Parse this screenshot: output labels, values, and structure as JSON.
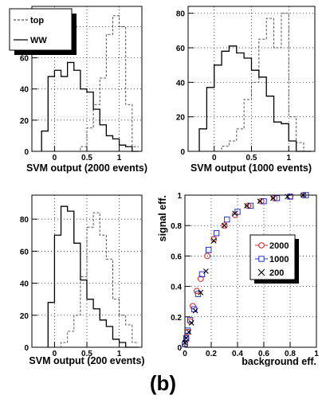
{
  "caption": "(b)",
  "chart_data": [
    {
      "type": "histogram",
      "xlabel": "SVM output (2000 events)",
      "ylabel": "",
      "xlim": [
        -0.35,
        1.35
      ],
      "ylim": [
        0,
        93
      ],
      "x_ticks": [
        0,
        0.5,
        1
      ],
      "x_tick_labels": [
        "0",
        "0.5",
        "1"
      ],
      "y_ticks": [
        0,
        20,
        40,
        60,
        80
      ],
      "y_tick_labels": [
        "0",
        "20",
        "40",
        "60",
        "80"
      ],
      "grid": true,
      "legend_position": "top-left",
      "bin_edges": [
        -0.2,
        -0.1,
        0.0,
        0.1,
        0.2,
        0.3,
        0.4,
        0.5,
        0.6,
        0.7,
        0.8,
        0.9,
        1.0,
        1.1,
        1.2,
        1.3
      ],
      "series": [
        {
          "name": "top",
          "style": "dashed",
          "color": "#555555",
          "values": [
            0,
            0,
            0,
            0,
            0,
            0,
            3,
            15,
            30,
            47,
            75,
            87,
            80,
            30,
            3
          ]
        },
        {
          "name": "WW",
          "style": "solid",
          "color": "#000000",
          "values": [
            13,
            48,
            52,
            48,
            57,
            52,
            40,
            38,
            27,
            17,
            10,
            8,
            4,
            3,
            0
          ]
        }
      ]
    },
    {
      "type": "histogram",
      "xlabel": "SVM output (1000 events)",
      "ylabel": "",
      "xlim": [
        -0.35,
        1.35
      ],
      "ylim": [
        0,
        84
      ],
      "x_ticks": [
        0,
        0.5,
        1
      ],
      "x_tick_labels": [
        "0",
        "0.5",
        "1"
      ],
      "y_ticks": [
        0,
        20,
        40,
        60,
        80
      ],
      "y_tick_labels": [
        "0",
        "20",
        "40",
        "60",
        "80"
      ],
      "grid": true,
      "bin_edges": [
        -0.2,
        -0.1,
        0.0,
        0.1,
        0.2,
        0.3,
        0.4,
        0.5,
        0.6,
        0.7,
        0.8,
        0.9,
        1.0,
        1.1,
        1.2,
        1.3
      ],
      "series": [
        {
          "name": "top",
          "style": "dashed",
          "color": "#555555",
          "values": [
            0,
            0,
            0,
            3,
            6,
            13,
            30,
            40,
            65,
            77,
            60,
            80,
            20,
            5,
            0
          ]
        },
        {
          "name": "WW",
          "style": "solid",
          "color": "#000000",
          "values": [
            13,
            37,
            50,
            58,
            61,
            57,
            54,
            47,
            43,
            32,
            17,
            16,
            6,
            0,
            0
          ]
        }
      ]
    },
    {
      "type": "histogram",
      "xlabel": "SVM output (200 events)",
      "ylabel": "",
      "xlim": [
        -0.35,
        1.35
      ],
      "ylim": [
        0,
        95
      ],
      "x_ticks": [
        0,
        0.5,
        1
      ],
      "x_tick_labels": [
        "0",
        "0.5",
        "1"
      ],
      "y_ticks": [
        0,
        20,
        40,
        60,
        80
      ],
      "y_tick_labels": [
        "0",
        "20",
        "40",
        "60",
        "80"
      ],
      "grid": true,
      "bin_edges": [
        -0.1,
        0.0,
        0.1,
        0.2,
        0.3,
        0.4,
        0.5,
        0.6,
        0.7,
        0.8,
        0.9,
        1.0,
        1.1,
        1.2,
        1.3
      ],
      "series": [
        {
          "name": "top",
          "style": "dashed",
          "color": "#555555",
          "values": [
            0,
            0,
            3,
            10,
            20,
            44,
            75,
            84,
            70,
            55,
            30,
            20,
            14,
            3
          ]
        },
        {
          "name": "WW",
          "style": "solid",
          "color": "#000000",
          "values": [
            28,
            70,
            88,
            85,
            65,
            42,
            30,
            24,
            17,
            13,
            5,
            3,
            0,
            0
          ]
        }
      ]
    },
    {
      "type": "scatter",
      "xlabel": "background eff.",
      "ylabel": "signal eff.",
      "xlim": [
        0,
        1
      ],
      "ylim": [
        0,
        1
      ],
      "x_ticks": [
        0,
        0.2,
        0.4,
        0.6,
        0.8,
        1
      ],
      "x_tick_labels": [
        "0",
        "0.2",
        "0.4",
        "0.6",
        "0.8",
        "1"
      ],
      "y_ticks": [
        0,
        0.2,
        0.4,
        0.6,
        0.8,
        1
      ],
      "y_tick_labels": [
        "0",
        "0.2",
        "0.4",
        "0.6",
        "0.8",
        "1"
      ],
      "grid": true,
      "legend_position": "right",
      "series": [
        {
          "name": "2000",
          "marker": "circle",
          "color": "#dd2222",
          "x": [
            0,
            0.01,
            0.02,
            0.04,
            0.06,
            0.09,
            0.12,
            0.17,
            0.22,
            0.3,
            0.38,
            0.48,
            0.58,
            0.68,
            0.8,
            0.9
          ],
          "y": [
            0.02,
            0.05,
            0.1,
            0.17,
            0.27,
            0.37,
            0.45,
            0.6,
            0.71,
            0.8,
            0.87,
            0.93,
            0.96,
            0.98,
            0.99,
            1.0
          ]
        },
        {
          "name": "1000",
          "marker": "square",
          "color": "#2233cc",
          "x": [
            0,
            0.01,
            0.02,
            0.04,
            0.07,
            0.1,
            0.13,
            0.18,
            0.24,
            0.32,
            0.4,
            0.5,
            0.6,
            0.7,
            0.8,
            0.92
          ],
          "y": [
            0.02,
            0.06,
            0.11,
            0.18,
            0.25,
            0.35,
            0.48,
            0.64,
            0.75,
            0.84,
            0.89,
            0.93,
            0.96,
            0.98,
            0.99,
            1.0
          ]
        },
        {
          "name": "200",
          "marker": "x",
          "color": "#000000",
          "x": [
            0,
            0.01,
            0.03,
            0.05,
            0.08,
            0.12,
            0.16,
            0.22,
            0.3,
            0.38,
            0.47,
            0.57,
            0.67,
            0.78,
            0.9
          ],
          "y": [
            0.03,
            0.06,
            0.1,
            0.16,
            0.24,
            0.36,
            0.5,
            0.7,
            0.8,
            0.88,
            0.93,
            0.96,
            0.98,
            0.99,
            1.0
          ]
        }
      ]
    }
  ]
}
